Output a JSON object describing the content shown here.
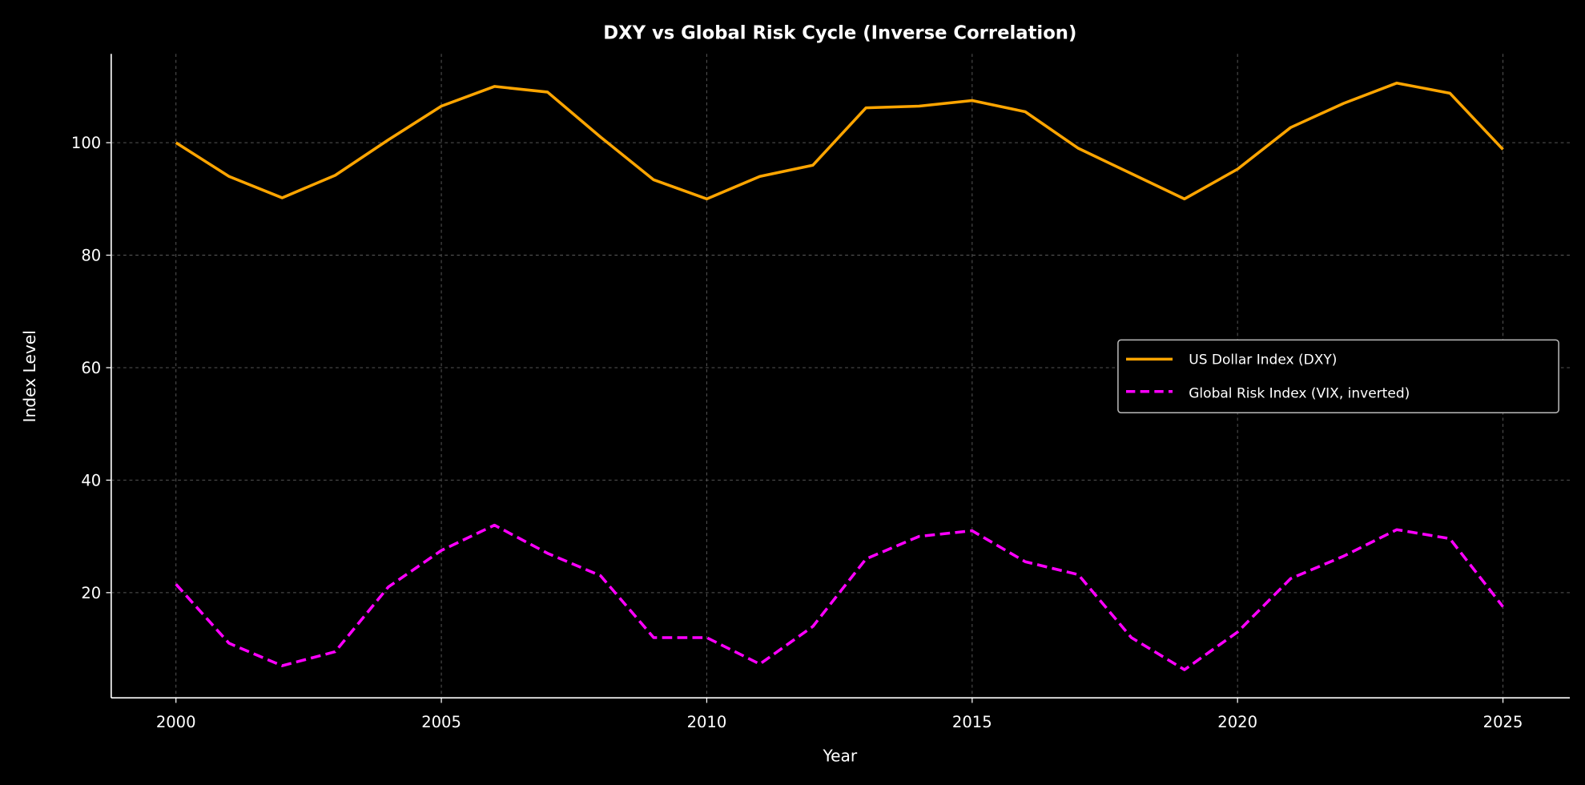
{
  "chart_data": {
    "type": "line",
    "title": "DXY vs Global Risk Cycle (Inverse Correlation)",
    "xlabel": "Year",
    "ylabel": "Index Level",
    "xlim": [
      1998.78,
      2026.26
    ],
    "ylim": [
      1.3,
      115.8
    ],
    "xticks": [
      2000,
      2005,
      2010,
      2015,
      2020,
      2025
    ],
    "yticks": [
      20,
      40,
      60,
      80,
      100
    ],
    "grid": true,
    "legend_position": "center-right",
    "background": "#000000",
    "x": [
      2000,
      2001,
      2002,
      2003,
      2004,
      2005,
      2006,
      2007,
      2008,
      2009,
      2010,
      2011,
      2012,
      2013,
      2014,
      2015,
      2016,
      2017,
      2018,
      2019,
      2020,
      2021,
      2022,
      2023,
      2024,
      2025
    ],
    "series": [
      {
        "name": "US Dollar Index (DXY)",
        "color": "#FFA500",
        "style": "solid",
        "values": [
          100,
          94,
          90.2,
          94.2,
          100.5,
          106.5,
          110,
          109,
          101,
          93.4,
          90,
          94,
          96,
          106.2,
          106.5,
          107.5,
          105.5,
          99,
          94.5,
          90,
          95.3,
          102.7,
          107,
          110.6,
          108.8,
          98.8
        ]
      },
      {
        "name": "Global Risk Index (VIX, inverted)",
        "color": "#FF00FF",
        "style": "dashed",
        "values": [
          21.5,
          11,
          7,
          9.5,
          21,
          27.5,
          32,
          27,
          23,
          12,
          12,
          7.3,
          14,
          26,
          30,
          31,
          25.5,
          23.2,
          12,
          6.3,
          13,
          22.5,
          26.5,
          31.2,
          29.6,
          17.5
        ]
      }
    ]
  }
}
